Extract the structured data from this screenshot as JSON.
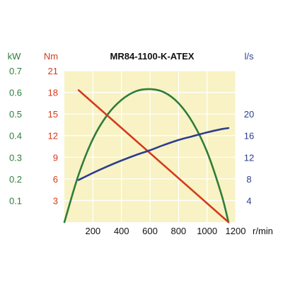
{
  "chart_data": {
    "type": "line",
    "title": "MR84-1100-K-ATEX",
    "x_unit": "r/min",
    "x_range": [
      0,
      1200
    ],
    "x_ticks": [
      200,
      400,
      600,
      800,
      1000,
      1200
    ],
    "axes": {
      "power": {
        "unit": "kW",
        "range": [
          0,
          0.7
        ],
        "ticks": [
          "0.1",
          "0.2",
          "0.3",
          "0.4",
          "0.5",
          "0.6",
          "0.7"
        ]
      },
      "torque": {
        "unit": "Nm",
        "range": [
          0,
          21
        ],
        "ticks": [
          "3",
          "6",
          "9",
          "12",
          "15",
          "18",
          "21"
        ]
      },
      "flow": {
        "unit": "l/s",
        "range": [
          0,
          28
        ],
        "ticks": [
          "4",
          "8",
          "12",
          "16",
          "20"
        ]
      }
    },
    "grid": true,
    "background": "#f8f2c4",
    "series": [
      {
        "axis": "power",
        "color": "#2e7d3a",
        "x": [
          0,
          100,
          200,
          300,
          400,
          500,
          600,
          700,
          800,
          900,
          1000,
          1100,
          1150
        ],
        "y": [
          0,
          0.22,
          0.385,
          0.495,
          0.565,
          0.605,
          0.615,
          0.6,
          0.55,
          0.46,
          0.325,
          0.13,
          0
        ]
      },
      {
        "axis": "torque",
        "color": "#d43a1a",
        "x": [
          100,
          1150
        ],
        "y": [
          18.3,
          0
        ]
      },
      {
        "axis": "flow",
        "color": "#2c3e8c",
        "x": [
          100,
          200,
          300,
          400,
          500,
          600,
          700,
          800,
          900,
          1000,
          1100,
          1150
        ],
        "y": [
          7.8,
          9.1,
          10.3,
          11.4,
          12.4,
          13.3,
          14.3,
          15.2,
          15.9,
          16.6,
          17.2,
          17.4
        ]
      }
    ]
  }
}
